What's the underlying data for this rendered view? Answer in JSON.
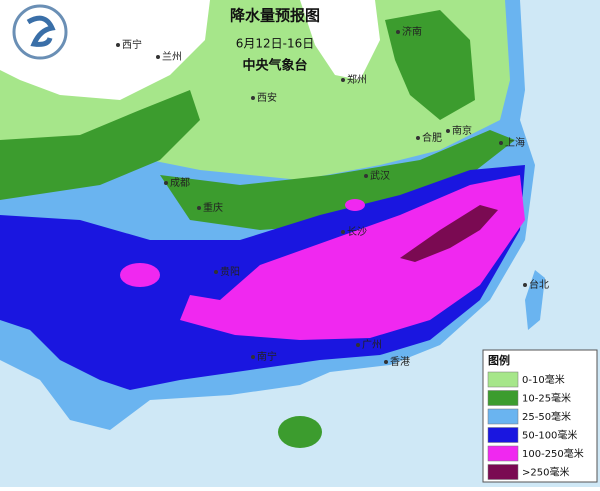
{
  "header": {
    "title": "降水量预报图",
    "date": "6月12日-16日",
    "source": "中央气象台"
  },
  "cities": [
    "西宁",
    "兰州",
    "西安",
    "郑州",
    "济南",
    "合肥",
    "南京",
    "上海",
    "武汉",
    "成都",
    "重庆",
    "长沙",
    "贵阳",
    "南宁",
    "广州",
    "香港",
    "台北"
  ],
  "legend": {
    "title": "图例",
    "items": [
      {
        "label": "0-10毫米",
        "color": "#a6e68a"
      },
      {
        "label": "10-25毫米",
        "color": "#3c9c2e"
      },
      {
        "label": "25-50毫米",
        "color": "#6ab4f0"
      },
      {
        "label": "50-100毫米",
        "color": "#1a16e0"
      },
      {
        "label": "100-250毫米",
        "color": "#f028f0"
      },
      {
        "label": ">250毫米",
        "color": "#7a0a52"
      }
    ]
  }
}
